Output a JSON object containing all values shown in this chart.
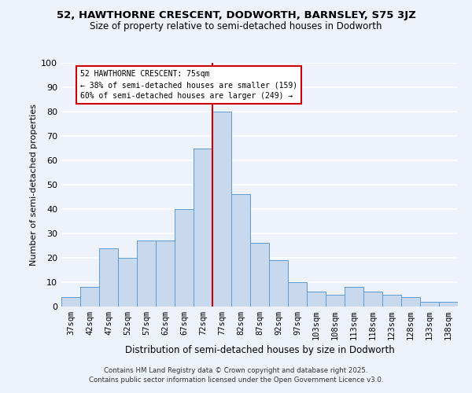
{
  "title": "52, HAWTHORNE CRESCENT, DODWORTH, BARNSLEY, S75 3JZ",
  "subtitle": "Size of property relative to semi-detached houses in Dodworth",
  "xlabel": "Distribution of semi-detached houses by size in Dodworth",
  "ylabel": "Number of semi-detached properties",
  "bar_labels": [
    "37sqm",
    "42sqm",
    "47sqm",
    "52sqm",
    "57sqm",
    "62sqm",
    "67sqm",
    "72sqm",
    "77sqm",
    "82sqm",
    "87sqm",
    "92sqm",
    "97sqm",
    "103sqm",
    "108sqm",
    "113sqm",
    "118sqm",
    "123sqm",
    "128sqm",
    "133sqm",
    "138sqm"
  ],
  "bar_values": [
    4,
    8,
    24,
    20,
    27,
    27,
    40,
    65,
    80,
    46,
    26,
    19,
    10,
    6,
    5,
    8,
    6,
    5,
    4,
    2,
    2
  ],
  "bar_color": "#c8d9ee",
  "bar_edgecolor": "#5b9bd5",
  "bg_color": "#eef2fb",
  "grid_color": "#ffffff",
  "vline_x": 7.5,
  "vline_color": "#cc0000",
  "annotation_title": "52 HAWTHORNE CRESCENT: 75sqm",
  "annotation_line1": "← 38% of semi-detached houses are smaller (159)",
  "annotation_line2": "60% of semi-detached houses are larger (249) →",
  "annotation_box_facecolor": "#ffffff",
  "annotation_box_edgecolor": "#cc0000",
  "ylim": [
    0,
    100
  ],
  "yticks": [
    0,
    10,
    20,
    30,
    40,
    50,
    60,
    70,
    80,
    90,
    100
  ],
  "footer1": "Contains HM Land Registry data © Crown copyright and database right 2025.",
  "footer2": "Contains public sector information licensed under the Open Government Licence v3.0."
}
